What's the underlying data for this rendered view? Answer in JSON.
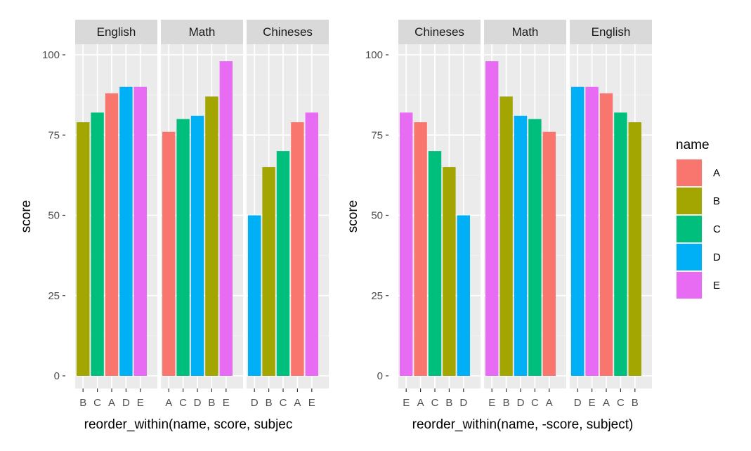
{
  "chart_data": [
    {
      "type": "bar",
      "ylabel": "score",
      "xlabel": "reorder_within(name, score, subjec",
      "ylim": [
        0,
        100
      ],
      "yticks": [
        0,
        25,
        50,
        75,
        100
      ],
      "tick_labels": [
        "0",
        "25",
        "50",
        "75",
        "100"
      ],
      "facets": [
        {
          "subject": "English",
          "names": [
            "B",
            "C",
            "A",
            "D",
            "E"
          ],
          "values": [
            79,
            82,
            88,
            90,
            90
          ]
        },
        {
          "subject": "Math",
          "names": [
            "A",
            "C",
            "D",
            "B",
            "E"
          ],
          "values": [
            76,
            80,
            81,
            87,
            98
          ]
        },
        {
          "subject": "Chineses",
          "names": [
            "D",
            "B",
            "C",
            "A",
            "E"
          ],
          "values": [
            50,
            65,
            70,
            79,
            82
          ]
        }
      ]
    },
    {
      "type": "bar",
      "ylabel": "score",
      "xlabel": "reorder_within(name, -score, subject)",
      "ylim": [
        0,
        100
      ],
      "yticks": [
        0,
        25,
        50,
        75,
        100
      ],
      "tick_labels": [
        "0",
        "25",
        "50",
        "75",
        "100"
      ],
      "facets": [
        {
          "subject": "Chineses",
          "names": [
            "E",
            "A",
            "C",
            "B",
            "D"
          ],
          "values": [
            82,
            79,
            70,
            65,
            50
          ]
        },
        {
          "subject": "Math",
          "names": [
            "E",
            "B",
            "D",
            "C",
            "A"
          ],
          "values": [
            98,
            87,
            81,
            80,
            76
          ]
        },
        {
          "subject": "English",
          "names": [
            "D",
            "E",
            "A",
            "C",
            "B"
          ],
          "values": [
            90,
            90,
            88,
            82,
            79
          ]
        }
      ]
    }
  ],
  "legend": {
    "title": "name",
    "items": [
      {
        "label": "A",
        "color": "#F8766D"
      },
      {
        "label": "B",
        "color": "#A3A500"
      },
      {
        "label": "C",
        "color": "#00BF7D"
      },
      {
        "label": "D",
        "color": "#00B0F6"
      },
      {
        "label": "E",
        "color": "#E76BF3"
      }
    ]
  }
}
